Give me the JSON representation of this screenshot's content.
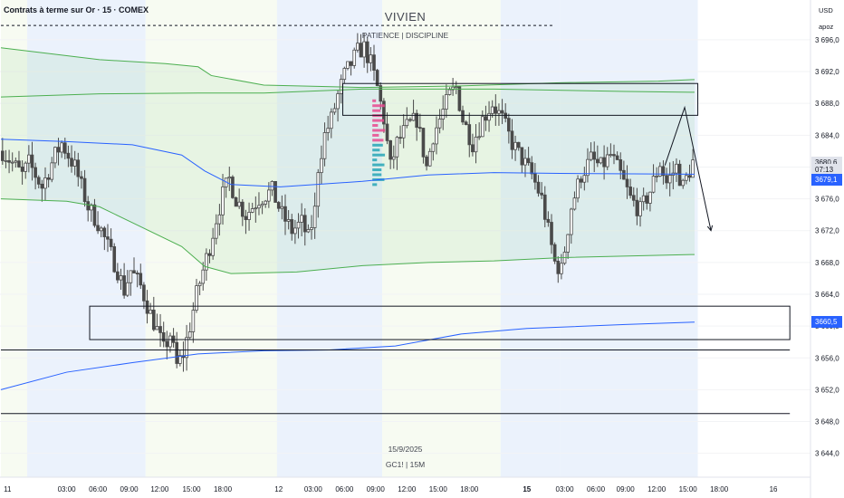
{
  "header": {
    "symbol_title": "Contrats à terme sur Or · 15 · COMEX",
    "watermark_title": "VIVIEN",
    "watermark_subtitle": "PATIENCE  |  DISCIPLINE",
    "bottom_date": "15/9/2025",
    "bottom_symbol": "GC1!  |  15M",
    "currency": "USD",
    "account": "apoz"
  },
  "price_tags": {
    "last_price": "3680,6",
    "countdown": "07:13",
    "vwap_price": "3679,1",
    "lower_vwap_price": "3660,5",
    "colors": {
      "last": "#e0e3eb",
      "vwap": "#2962ff",
      "lower": "#2962ff"
    }
  },
  "chart_data": {
    "type": "candlestick",
    "title": "Contrats à terme sur Or · 15 · COMEX",
    "symbol": "GC1!",
    "timeframe": "15",
    "x_tick_labels": [
      "11",
      "03:00",
      "06:00",
      "09:00",
      "12:00",
      "15:00",
      "18:00",
      "12",
      "03:00",
      "06:00",
      "09:00",
      "12:00",
      "15:00",
      "18:00",
      "15",
      "03:00",
      "06:00",
      "09:00",
      "12:00",
      "15:00",
      "18:00",
      "16"
    ],
    "y_ticks": [
      3644.0,
      3648.0,
      3652.0,
      3656.0,
      3660.0,
      3664.0,
      3668.0,
      3672.0,
      3676.0,
      3680.0,
      3684.0,
      3688.0,
      3692.0,
      3696.0
    ],
    "y_tick_labels": [
      "3 644,0",
      "3 648,0",
      "3 652,0",
      "3 656,0",
      "3 660,0",
      "3 664,0",
      "3 668,0",
      "3 672,0",
      "3 676,0",
      "3 680,0",
      "3 684,0",
      "3 688,0",
      "3 692,0",
      "3 696,0"
    ],
    "y_range": [
      3641.0,
      3701.0
    ],
    "x_range_bars": [
      0,
      212
    ],
    "session_bands": [
      [
        0,
        8
      ],
      [
        8,
        44
      ],
      [
        44,
        84
      ],
      [
        84,
        116
      ],
      [
        116,
        152
      ],
      [
        152,
        170
      ],
      [
        170,
        212
      ]
    ],
    "session_colors": [
      "#f7fbf2",
      "#ebf2fc",
      "#f7fbf2",
      "#ebf2fc",
      "#f7fbf2",
      "#ebf2fc",
      "#ebf2fc"
    ],
    "anchor_close": 3682.0,
    "series": [
      {
        "name": "VWAP upper band",
        "color": "#4caf50",
        "points": [
          [
            0,
            3695.0
          ],
          [
            30,
            3693.5
          ],
          [
            50,
            3693.0
          ],
          [
            60,
            3692.6
          ],
          [
            64,
            3691.5
          ],
          [
            80,
            3690.3
          ],
          [
            110,
            3690.0
          ],
          [
            140,
            3690.2
          ],
          [
            170,
            3690.6
          ],
          [
            200,
            3690.8
          ],
          [
            220,
            3691.0
          ]
        ]
      },
      {
        "name": "VWAP upper inner",
        "color": "#4caf50",
        "points": [
          [
            0,
            3688.8
          ],
          [
            30,
            3689.2
          ],
          [
            60,
            3689.3
          ],
          [
            80,
            3689.3
          ],
          [
            110,
            3689.8
          ],
          [
            150,
            3689.8
          ],
          [
            190,
            3689.5
          ],
          [
            220,
            3689.4
          ]
        ]
      },
      {
        "name": "VWAP",
        "color": "#2962ff",
        "points": [
          [
            0,
            3683.5
          ],
          [
            20,
            3683.2
          ],
          [
            40,
            3682.8
          ],
          [
            55,
            3681.5
          ],
          [
            62,
            3679.5
          ],
          [
            70,
            3677.8
          ],
          [
            85,
            3677.5
          ],
          [
            110,
            3678.2
          ],
          [
            130,
            3679.0
          ],
          [
            150,
            3679.3
          ],
          [
            170,
            3679.2
          ],
          [
            220,
            3679.1
          ]
        ]
      },
      {
        "name": "VWAP lower band",
        "color": "#4caf50",
        "points": [
          [
            0,
            3676.0
          ],
          [
            20,
            3675.7
          ],
          [
            30,
            3675.0
          ],
          [
            40,
            3673.0
          ],
          [
            55,
            3670.0
          ],
          [
            62,
            3667.5
          ],
          [
            70,
            3666.6
          ],
          [
            90,
            3666.8
          ],
          [
            110,
            3667.6
          ],
          [
            130,
            3668.0
          ],
          [
            150,
            3668.2
          ],
          [
            170,
            3668.6
          ],
          [
            220,
            3669.0
          ]
        ]
      },
      {
        "name": "Lower anchored VWAP",
        "color": "#2962ff",
        "points": [
          [
            0,
            3652.0
          ],
          [
            20,
            3654.2
          ],
          [
            40,
            3655.4
          ],
          [
            60,
            3656.5
          ],
          [
            80,
            3656.9
          ],
          [
            100,
            3657.0
          ],
          [
            120,
            3657.5
          ],
          [
            140,
            3659.0
          ],
          [
            160,
            3659.7
          ],
          [
            190,
            3660.2
          ],
          [
            220,
            3660.5
          ]
        ]
      }
    ],
    "ohlc_profile": [
      [
        0,
        3682.0
      ],
      [
        6,
        3679.0
      ],
      [
        8,
        3680.5
      ],
      [
        12,
        3677.5
      ],
      [
        16,
        3681.5
      ],
      [
        18,
        3683.0
      ],
      [
        22,
        3680.0
      ],
      [
        26,
        3675.0
      ],
      [
        29,
        3673.0
      ],
      [
        32,
        3670.0
      ],
      [
        35,
        3667.0
      ],
      [
        37,
        3664.5
      ],
      [
        39,
        3667.0
      ],
      [
        42,
        3665.0
      ],
      [
        45,
        3661.5
      ],
      [
        47,
        3659.5
      ],
      [
        49,
        3657.0
      ],
      [
        51,
        3659.0
      ],
      [
        53,
        3655.0
      ],
      [
        55,
        3656.5
      ],
      [
        57,
        3660.0
      ],
      [
        59,
        3664.0
      ],
      [
        61,
        3667.0
      ],
      [
        63,
        3670.0
      ],
      [
        65,
        3673.5
      ],
      [
        67,
        3676.5
      ],
      [
        69,
        3678.5
      ],
      [
        71,
        3676.0
      ],
      [
        74,
        3674.0
      ],
      [
        78,
        3676.0
      ],
      [
        82,
        3677.0
      ],
      [
        85,
        3674.0
      ],
      [
        88,
        3672.0
      ],
      [
        91,
        3673.0
      ],
      [
        93,
        3671.0
      ],
      [
        95,
        3674.5
      ],
      [
        96,
        3680.0
      ],
      [
        98,
        3684.0
      ],
      [
        100,
        3686.0
      ],
      [
        102,
        3689.0
      ],
      [
        104,
        3691.5
      ],
      [
        106,
        3693.0
      ],
      [
        108,
        3694.5
      ],
      [
        110,
        3695.0
      ],
      [
        112,
        3693.0
      ],
      [
        114,
        3690.0
      ],
      [
        116,
        3686.0
      ],
      [
        118,
        3680.0
      ],
      [
        120,
        3683.0
      ],
      [
        123,
        3685.0
      ],
      [
        126,
        3686.0
      ],
      [
        129,
        3680.0
      ],
      [
        131,
        3684.0
      ],
      [
        134,
        3687.0
      ],
      [
        136,
        3689.0
      ],
      [
        138,
        3690.0
      ],
      [
        140,
        3686.0
      ],
      [
        143,
        3683.0
      ],
      [
        146,
        3686.0
      ],
      [
        149,
        3688.0
      ],
      [
        152,
        3686.0
      ],
      [
        155,
        3683.0
      ],
      [
        158,
        3681.0
      ],
      [
        161,
        3679.0
      ],
      [
        164,
        3676.0
      ],
      [
        166,
        3672.0
      ],
      [
        168,
        3668.0
      ],
      [
        170,
        3667.0
      ],
      [
        173,
        3675.0
      ],
      [
        176,
        3679.0
      ],
      [
        179,
        3681.0
      ],
      [
        182,
        3680.0
      ],
      [
        185,
        3681.5
      ],
      [
        188,
        3679.0
      ],
      [
        191,
        3676.0
      ],
      [
        194,
        3674.5
      ],
      [
        197,
        3677.0
      ],
      [
        200,
        3680.5
      ],
      [
        202,
        3678.0
      ],
      [
        205,
        3680.0
      ],
      [
        207,
        3677.5
      ],
      [
        210,
        3680.6
      ]
    ],
    "rectangles": [
      {
        "x0": 104,
        "x1": 212,
        "y0": 3686.5,
        "y1": 3690.5
      },
      {
        "x0": 27,
        "x1": 240,
        "y0": 3658.3,
        "y1": 3662.5
      },
      {
        "x0": 0,
        "x1": 240,
        "y0": 3657.0,
        "y1": 3657.0
      },
      {
        "x0": 0,
        "x1": 240,
        "y0": 3649.0,
        "y1": 3649.0
      },
      {
        "x0": 0,
        "x1": 168,
        "y0": 3697.8,
        "y1": 3697.8
      }
    ],
    "projection_path": [
      [
        202,
        3680.2
      ],
      [
        208,
        3687.5
      ],
      [
        216,
        3672.0
      ]
    ],
    "volume_profile_bars": 18
  }
}
